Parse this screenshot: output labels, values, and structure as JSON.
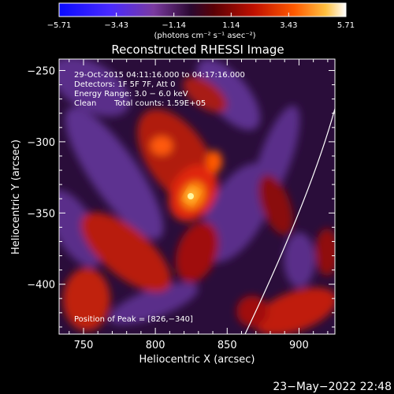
{
  "chart_data": {
    "type": "heatmap",
    "title": "Reconstructed RHESSI Image",
    "xlabel": "Heliocentric X (arcsec)",
    "ylabel": "Heliocentric Y (arcsec)",
    "xlim": [
      733,
      925
    ],
    "ylim": [
      -435,
      -242
    ],
    "x_ticks": [
      750,
      800,
      850,
      900
    ],
    "y_ticks": [
      -250,
      -300,
      -350,
      -400
    ],
    "x_tick_labels": [
      "750",
      "800",
      "850",
      "900"
    ],
    "y_tick_labels": [
      "−250",
      "−300",
      "−350",
      "−400"
    ],
    "colorbar": {
      "min": -5.71,
      "max": 5.71,
      "ticks": [
        -5.71,
        -3.43,
        -1.14,
        1.14,
        3.43,
        5.71
      ],
      "tick_labels": [
        "−5.71",
        "−3.43",
        "−1.14",
        "1.14",
        "3.43",
        "5.71"
      ],
      "units_label": "(photons cm⁻² s⁻¹ asec⁻²)"
    },
    "info": {
      "time_range": "29-Oct-2015 04:11:16.000 to 04:17:16.000",
      "detectors": "Detectors: 1F 5F 7F, Att 0",
      "energy": "Energy Range: 3.0 − 6.0 keV",
      "method": "Clean",
      "total_counts": "Total counts: 1.59E+05",
      "peak": "Position of Peak = [826,−340]"
    },
    "peak_position": [
      826,
      -340
    ],
    "peak_value": 5.71,
    "grid": false
  },
  "footer": {
    "timestamp": "23−May−2022 22:48"
  },
  "colors": {
    "background": "#000000",
    "text": "#ffffff",
    "limb": "#ffffff",
    "colormap": [
      "#0a0aff",
      "#5a28ff",
      "#7a3a9a",
      "#3a1050",
      "#6a0008",
      "#c01000",
      "#ff3a00",
      "#ff9a00",
      "#fff060",
      "#ffffff"
    ]
  }
}
